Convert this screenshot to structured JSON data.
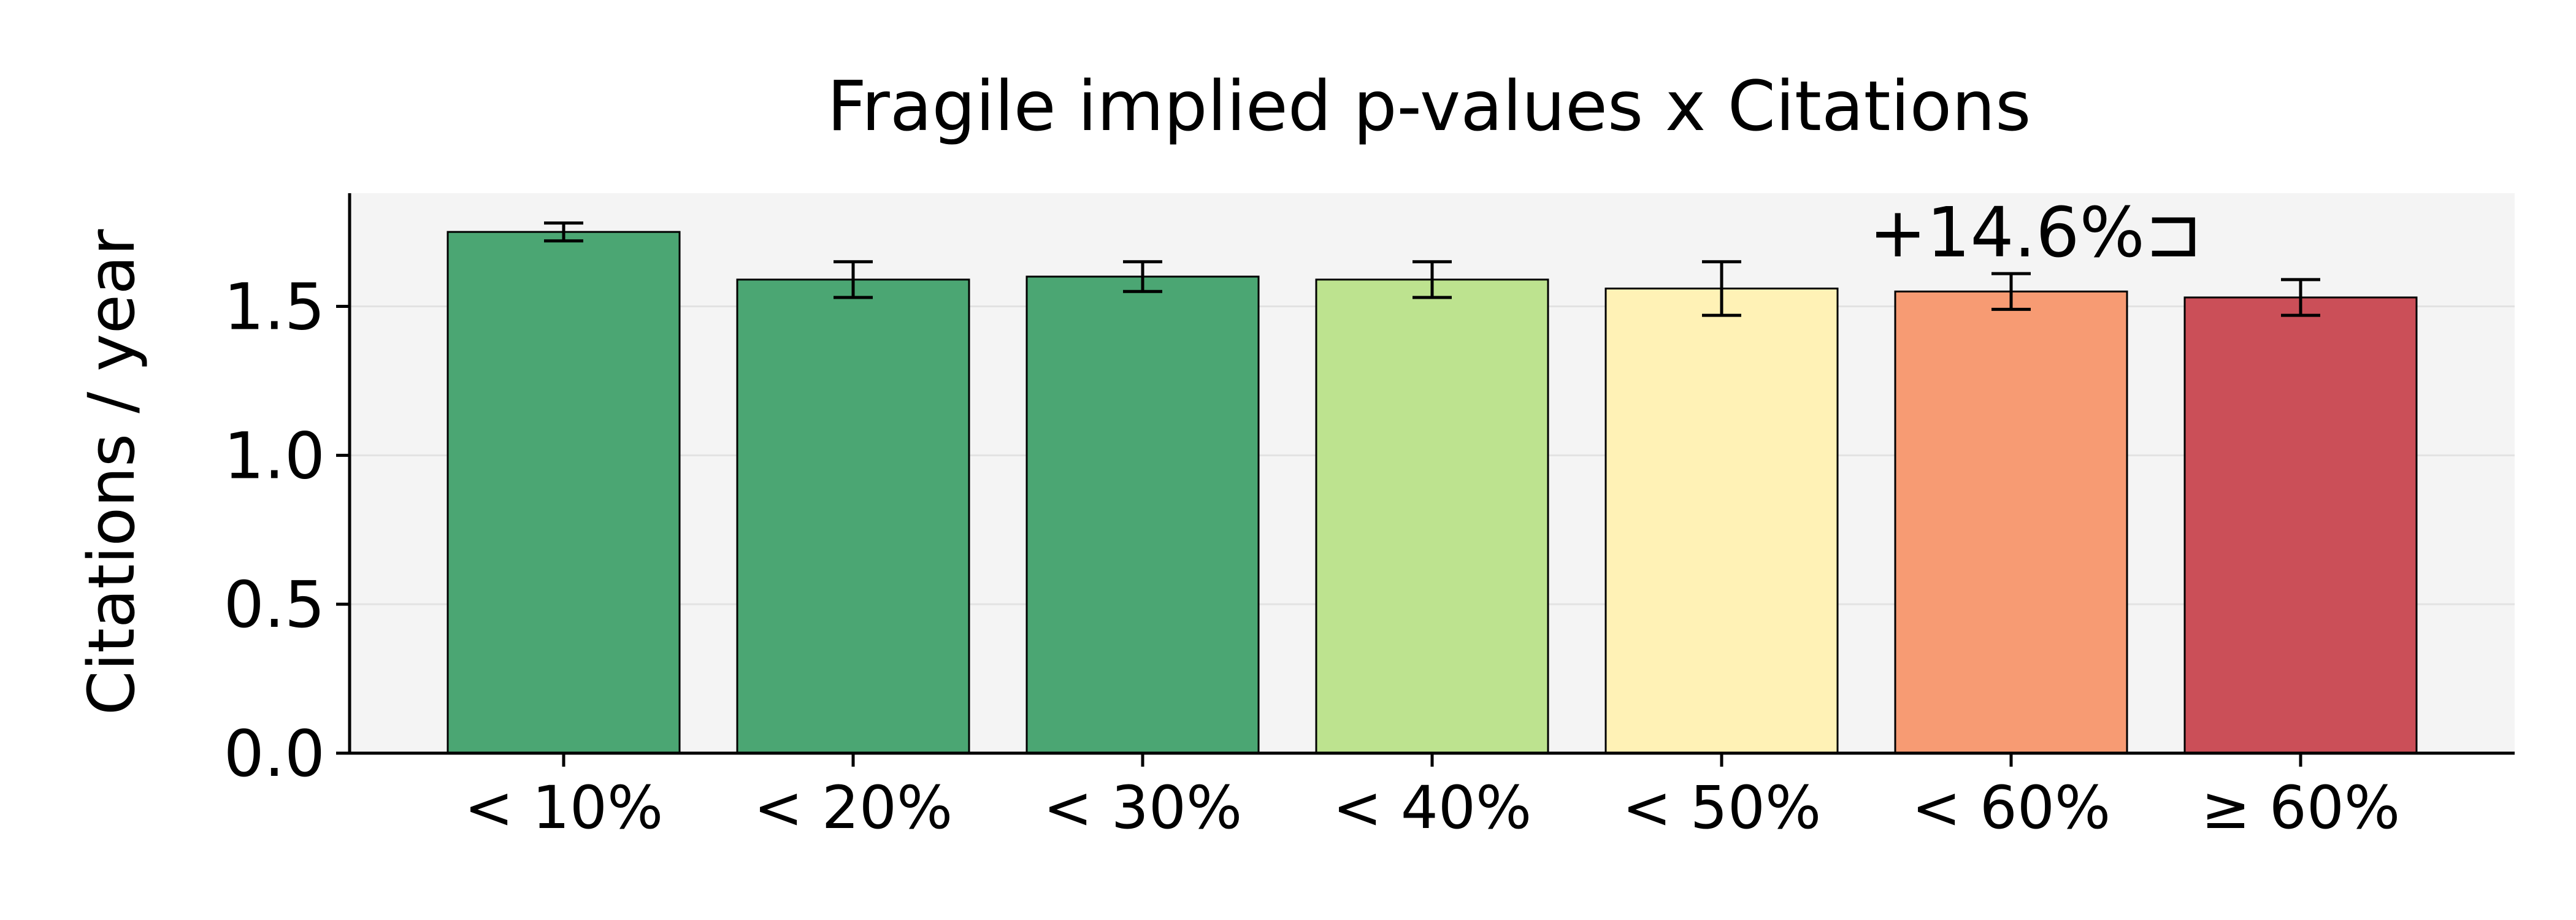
{
  "chart_data": {
    "type": "bar",
    "title": "Fragile implied p-values x Citations",
    "xlabel": "",
    "ylabel": "Citations / year",
    "categories": [
      "< 10%",
      "< 20%",
      "< 30%",
      "< 40%",
      "< 50%",
      "< 60%",
      "≥ 60%"
    ],
    "values": [
      1.75,
      1.59,
      1.6,
      1.59,
      1.56,
      1.55,
      1.53
    ],
    "error": [
      0.03,
      0.06,
      0.05,
      0.06,
      0.09,
      0.06,
      0.06
    ],
    "colors": [
      "#4ba673",
      "#4ba673",
      "#4ba673",
      "#bde38f",
      "#fff2b6",
      "#f79b73",
      "#cb4f58"
    ],
    "ylim": [
      0,
      1.88
    ],
    "yticks": [
      "0.0",
      "0.5",
      "1.0",
      "1.5"
    ],
    "grid": true,
    "plot_background": "#f4f4f4",
    "annotation": {
      "text": "+14.6%⊐",
      "category_index": 5
    }
  }
}
